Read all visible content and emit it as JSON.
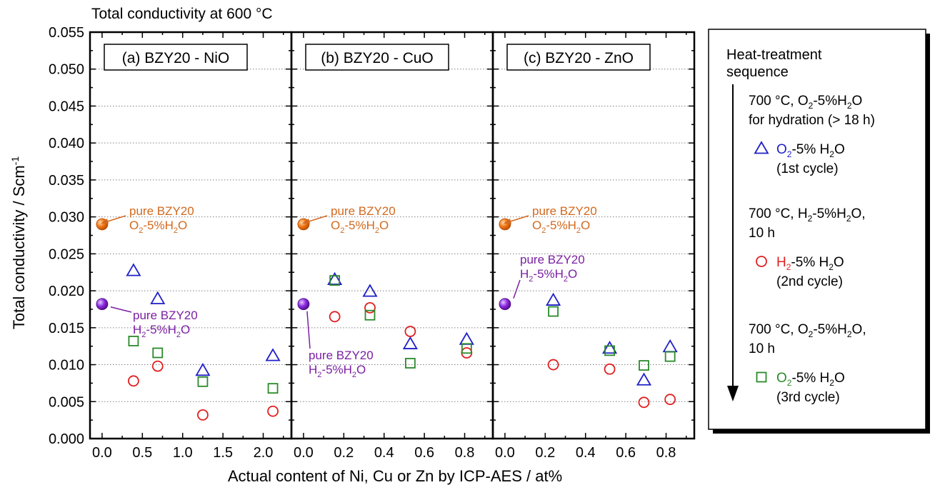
{
  "chart_data": {
    "type": "scatter",
    "title": "Total conductivity at 600 °C",
    "xlabel": "Actual content of Ni, Cu or Zn by ICP-AES / at%",
    "ylabel": "Total conductivity / Scm",
    "ylabel_sup": "-1",
    "ylim": [
      0,
      0.055
    ],
    "yticks": [
      "0.000",
      "0.005",
      "0.010",
      "0.015",
      "0.020",
      "0.025",
      "0.030",
      "0.035",
      "0.040",
      "0.045",
      "0.050",
      "0.055"
    ],
    "grid": "horizontal dotted",
    "colors": {
      "o2_first": "#1f1fc8",
      "h2_second": "#e02020",
      "o2_third": "#2a8a2a",
      "pure_o2": "#f07818",
      "pure_h2": "#8a2be2",
      "label_orange": "#d2691e",
      "label_purple": "#7b1fa2"
    },
    "panels": [
      {
        "label": "(a) BZY20 - NiO",
        "xlim": [
          -0.15,
          2.35
        ],
        "xticks": [
          "0.0",
          "0.5",
          "1.0",
          "1.5",
          "2.0"
        ],
        "series": [
          {
            "marker": "triangle",
            "color": "#1f1fc8",
            "points": [
              [
                0.39,
                0.0227
              ],
              [
                0.69,
                0.0189
              ],
              [
                1.25,
                0.0092
              ],
              [
                2.12,
                0.0112
              ]
            ]
          },
          {
            "marker": "circle",
            "color": "#e02020",
            "points": [
              [
                0.39,
                0.0078
              ],
              [
                0.69,
                0.0098
              ],
              [
                1.25,
                0.0032
              ],
              [
                2.12,
                0.0037
              ]
            ]
          },
          {
            "marker": "square",
            "color": "#2a8a2a",
            "points": [
              [
                0.39,
                0.0132
              ],
              [
                0.69,
                0.0116
              ],
              [
                1.25,
                0.0077
              ],
              [
                2.12,
                0.0068
              ]
            ]
          }
        ],
        "pure_o2": [
          0.0,
          0.029
        ],
        "pure_h2": [
          0.0,
          0.0182
        ],
        "annot_o2": [
          "pure BZY20",
          "O2-5%H2O"
        ],
        "annot_h2": [
          "pure BZY20",
          "H2-5%H2O"
        ]
      },
      {
        "label": "(b) BZY20 - CuO",
        "xlim": [
          -0.06,
          0.94
        ],
        "xticks": [
          "0.0",
          "0.2",
          "0.4",
          "0.6",
          "0.8"
        ],
        "series": [
          {
            "marker": "triangle",
            "color": "#1f1fc8",
            "points": [
              [
                0.155,
                0.0215
              ],
              [
                0.33,
                0.0199
              ],
              [
                0.53,
                0.0128
              ],
              [
                0.81,
                0.0134
              ]
            ]
          },
          {
            "marker": "circle",
            "color": "#e02020",
            "points": [
              [
                0.155,
                0.0165
              ],
              [
                0.33,
                0.0177
              ],
              [
                0.53,
                0.0145
              ],
              [
                0.81,
                0.0116
              ]
            ]
          },
          {
            "marker": "square",
            "color": "#2a8a2a",
            "points": [
              [
                0.155,
                0.0214
              ],
              [
                0.33,
                0.0167
              ],
              [
                0.53,
                0.0102
              ],
              [
                0.81,
                0.0122
              ]
            ]
          }
        ],
        "pure_o2": [
          0.0,
          0.029
        ],
        "pure_h2": [
          0.0,
          0.0182
        ],
        "annot_o2": [
          "pure BZY20",
          "O2-5%H2O"
        ],
        "annot_h2": [
          "pure BZY20",
          "H2-5%H2O"
        ]
      },
      {
        "label": "(c) BZY20 - ZnO",
        "xlim": [
          -0.06,
          0.94
        ],
        "xticks": [
          "0.0",
          "0.2",
          "0.4",
          "0.6",
          "0.8"
        ],
        "series": [
          {
            "marker": "triangle",
            "color": "#1f1fc8",
            "points": [
              [
                0.24,
                0.0187
              ],
              [
                0.52,
                0.0122
              ],
              [
                0.69,
                0.0079
              ],
              [
                0.82,
                0.0124
              ]
            ]
          },
          {
            "marker": "circle",
            "color": "#e02020",
            "points": [
              [
                0.24,
                0.01
              ],
              [
                0.52,
                0.0094
              ],
              [
                0.69,
                0.0049
              ],
              [
                0.82,
                0.0053
              ]
            ]
          },
          {
            "marker": "square",
            "color": "#2a8a2a",
            "points": [
              [
                0.24,
                0.0172
              ],
              [
                0.52,
                0.0119
              ],
              [
                0.69,
                0.0099
              ],
              [
                0.82,
                0.0111
              ]
            ]
          }
        ],
        "pure_o2": [
          0.0,
          0.029
        ],
        "pure_h2": [
          0.0,
          0.0182
        ],
        "annot_o2": [
          "pure BZY20",
          "O2-5%H2O"
        ],
        "annot_h2": [
          "pure BZY20",
          "H2-5%H2O"
        ]
      }
    ],
    "legend": {
      "position": "right",
      "title": [
        "Heat-treatment",
        "sequence"
      ],
      "step1": [
        "700 °C, O2-5%H2O",
        "for hydration (> 18 h)"
      ],
      "entry1": [
        "O2-5% H2O",
        "(1st cycle)"
      ],
      "step2": [
        "700 °C, H2-5%H2O,",
        "10 h"
      ],
      "entry2": [
        "H2-5% H2O",
        "(2nd cycle)"
      ],
      "step3": [
        "700 °C, O2-5%H2O,",
        "10 h"
      ],
      "entry3": [
        "O2-5% H2O",
        "(3rd cycle)"
      ]
    }
  }
}
